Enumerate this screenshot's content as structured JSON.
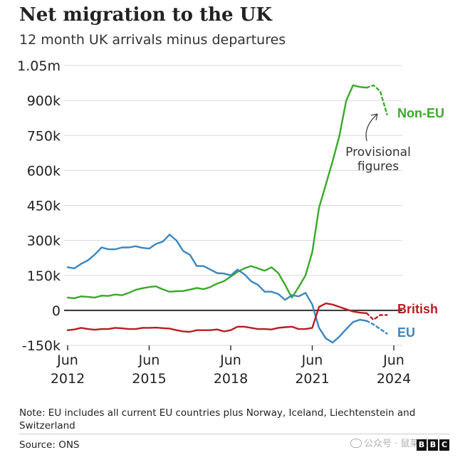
{
  "header": {
    "title": "Net migration to the UK",
    "subtitle": "12 month UK arrivals minus departures"
  },
  "footer": {
    "note": "Note: EU includes all current EU countries plus Norway, Iceland, Liechtenstein and Switzerland",
    "source": "Source: ONS",
    "watermark": "公众号 · 鼠莱园",
    "logo_letters": [
      "B",
      "B",
      "C"
    ]
  },
  "chart_data": {
    "type": "line",
    "title": "Net migration to the UK",
    "subtitle": "12 month UK arrivals minus departures",
    "y_ticks": [
      "1.05m",
      "900k",
      "750k",
      "600k",
      "450k",
      "300k",
      "150k",
      "0",
      "-150k"
    ],
    "y_tick_values": [
      1050000,
      900000,
      750000,
      600000,
      450000,
      300000,
      150000,
      0,
      -150000
    ],
    "ylim": [
      -150000,
      1050000
    ],
    "x_ticks": [
      {
        "month": "Jun",
        "year": "2012",
        "t": 2012.5
      },
      {
        "month": "Jun",
        "year": "2015",
        "t": 2015.5
      },
      {
        "month": "Jun",
        "year": "2018",
        "t": 2018.5
      },
      {
        "month": "Jun",
        "year": "2021",
        "t": 2021.5
      },
      {
        "month": "Jun",
        "year": "2024",
        "t": 2024.5
      }
    ],
    "xlim": [
      2012.5,
      2024.5
    ],
    "grid": true,
    "zero_line": true,
    "annotation": {
      "text_lines": [
        "Provisional",
        "figures"
      ]
    },
    "colors": {
      "non_eu": "#3aa82a",
      "british": "#b81d22",
      "eu": "#3a86c0",
      "grid": "#d9d9d9",
      "zero": "#333333"
    },
    "series": [
      {
        "name": "Non-EU",
        "color": "#3aa82a",
        "x": [
          2012.5,
          2012.75,
          2013.0,
          2013.25,
          2013.5,
          2013.75,
          2014.0,
          2014.25,
          2014.5,
          2014.75,
          2015.0,
          2015.25,
          2015.5,
          2015.75,
          2016.0,
          2016.25,
          2016.5,
          2016.75,
          2017.0,
          2017.25,
          2017.5,
          2017.75,
          2018.0,
          2018.25,
          2018.5,
          2018.75,
          2019.0,
          2019.25,
          2019.5,
          2019.75,
          2020.0,
          2020.25,
          2020.5,
          2020.75,
          2021.0,
          2021.25,
          2021.5,
          2021.75,
          2022.0,
          2022.25,
          2022.5,
          2022.75,
          2023.0,
          2023.25,
          2023.5
        ],
        "y": [
          55000,
          52000,
          60000,
          58000,
          55000,
          63000,
          62000,
          68000,
          65000,
          75000,
          88000,
          95000,
          100000,
          103000,
          90000,
          80000,
          82000,
          83000,
          89000,
          96000,
          91000,
          100000,
          115000,
          125000,
          145000,
          165000,
          180000,
          190000,
          180000,
          170000,
          185000,
          160000,
          110000,
          55000,
          100000,
          150000,
          250000,
          440000,
          540000,
          640000,
          750000,
          900000,
          965000,
          958000,
          955000
        ],
        "provisional": {
          "x": [
            2023.5,
            2023.75,
            2024.0,
            2024.25
          ],
          "y": [
            955000,
            965000,
            940000,
            840000
          ]
        }
      },
      {
        "name": "British",
        "color": "#b81d22",
        "x": [
          2012.5,
          2012.75,
          2013.0,
          2013.25,
          2013.5,
          2013.75,
          2014.0,
          2014.25,
          2014.5,
          2014.75,
          2015.0,
          2015.25,
          2015.5,
          2015.75,
          2016.0,
          2016.25,
          2016.5,
          2016.75,
          2017.0,
          2017.25,
          2017.5,
          2017.75,
          2018.0,
          2018.25,
          2018.5,
          2018.75,
          2019.0,
          2019.25,
          2019.5,
          2019.75,
          2020.0,
          2020.25,
          2020.5,
          2020.75,
          2021.0,
          2021.25,
          2021.5,
          2021.75,
          2022.0,
          2022.25,
          2022.5,
          2022.75,
          2023.0,
          2023.25,
          2023.5
        ],
        "y": [
          -85000,
          -82000,
          -75000,
          -80000,
          -83000,
          -80000,
          -80000,
          -75000,
          -77000,
          -80000,
          -80000,
          -75000,
          -75000,
          -74000,
          -76000,
          -78000,
          -85000,
          -90000,
          -92000,
          -85000,
          -85000,
          -85000,
          -82000,
          -90000,
          -85000,
          -70000,
          -70000,
          -75000,
          -80000,
          -80000,
          -82000,
          -75000,
          -72000,
          -70000,
          -80000,
          -80000,
          -75000,
          15000,
          30000,
          25000,
          15000,
          5000,
          -5000,
          -10000,
          -12000
        ],
        "provisional": {
          "x": [
            2023.5,
            2023.75,
            2024.0,
            2024.25
          ],
          "y": [
            -12000,
            -40000,
            -20000,
            -20000
          ]
        }
      },
      {
        "name": "EU",
        "color": "#3a86c0",
        "x": [
          2012.5,
          2012.75,
          2013.0,
          2013.25,
          2013.5,
          2013.75,
          2014.0,
          2014.25,
          2014.5,
          2014.75,
          2015.0,
          2015.25,
          2015.5,
          2015.75,
          2016.0,
          2016.25,
          2016.5,
          2016.75,
          2017.0,
          2017.25,
          2017.5,
          2017.75,
          2018.0,
          2018.25,
          2018.5,
          2018.75,
          2019.0,
          2019.25,
          2019.5,
          2019.75,
          2020.0,
          2020.25,
          2020.5,
          2020.75,
          2021.0,
          2021.25,
          2021.5,
          2021.75,
          2022.0,
          2022.25,
          2022.5,
          2022.75,
          2023.0,
          2023.25,
          2023.5
        ],
        "y": [
          185000,
          180000,
          200000,
          215000,
          240000,
          270000,
          262000,
          262000,
          270000,
          270000,
          275000,
          268000,
          265000,
          285000,
          295000,
          325000,
          300000,
          255000,
          238000,
          190000,
          190000,
          175000,
          160000,
          158000,
          150000,
          175000,
          155000,
          125000,
          110000,
          80000,
          80000,
          70000,
          45000,
          65000,
          60000,
          75000,
          25000,
          -75000,
          -120000,
          -138000,
          -112000,
          -80000,
          -50000,
          -40000,
          -45000
        ],
        "provisional": {
          "x": [
            2023.5,
            2023.75,
            2024.0,
            2024.25
          ],
          "y": [
            -45000,
            -60000,
            -80000,
            -100000
          ]
        }
      }
    ]
  }
}
